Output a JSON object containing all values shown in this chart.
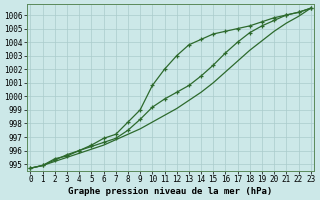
{
  "title": "Graphe pression niveau de la mer (hPa)",
  "bg_color": "#cce8e8",
  "grid_color": "#aacccc",
  "line_color": "#2d6a2d",
  "x_values": [
    0,
    1,
    2,
    3,
    4,
    5,
    6,
    7,
    8,
    9,
    10,
    11,
    12,
    13,
    14,
    15,
    16,
    17,
    18,
    19,
    20,
    21,
    22,
    23
  ],
  "line1": [
    994.7,
    994.9,
    995.4,
    995.6,
    996.0,
    996.4,
    996.9,
    997.2,
    998.1,
    999.0,
    1000.8,
    1002.0,
    1003.0,
    1003.8,
    1004.2,
    1004.6,
    1004.8,
    1005.0,
    1005.2,
    1005.5,
    1005.8,
    1006.0,
    1006.2,
    1006.5
  ],
  "line2": [
    994.7,
    994.9,
    995.3,
    995.7,
    996.0,
    996.3,
    996.6,
    996.9,
    997.5,
    998.3,
    999.2,
    999.8,
    1000.3,
    1000.8,
    1001.5,
    1002.3,
    1003.2,
    1004.0,
    1004.7,
    1005.2,
    1005.6,
    1006.0,
    1006.2,
    1006.5
  ],
  "line3": [
    994.7,
    994.9,
    995.2,
    995.5,
    995.8,
    996.1,
    996.4,
    996.8,
    997.2,
    997.6,
    998.1,
    998.6,
    999.1,
    999.7,
    1000.3,
    1001.0,
    1001.8,
    1002.6,
    1003.4,
    1004.1,
    1004.8,
    1005.4,
    1005.9,
    1006.5
  ],
  "ylim": [
    994.5,
    1006.8
  ],
  "yticks": [
    995,
    996,
    997,
    998,
    999,
    1000,
    1001,
    1002,
    1003,
    1004,
    1005,
    1006
  ],
  "xlim": [
    -0.3,
    23.3
  ],
  "xticks": [
    0,
    1,
    2,
    3,
    4,
    5,
    6,
    7,
    8,
    9,
    10,
    11,
    12,
    13,
    14,
    15,
    16,
    17,
    18,
    19,
    20,
    21,
    22,
    23
  ],
  "tick_fontsize": 5.5,
  "title_fontsize": 6.5,
  "marker": "+",
  "marker_size": 3.5,
  "linewidth": 0.9
}
